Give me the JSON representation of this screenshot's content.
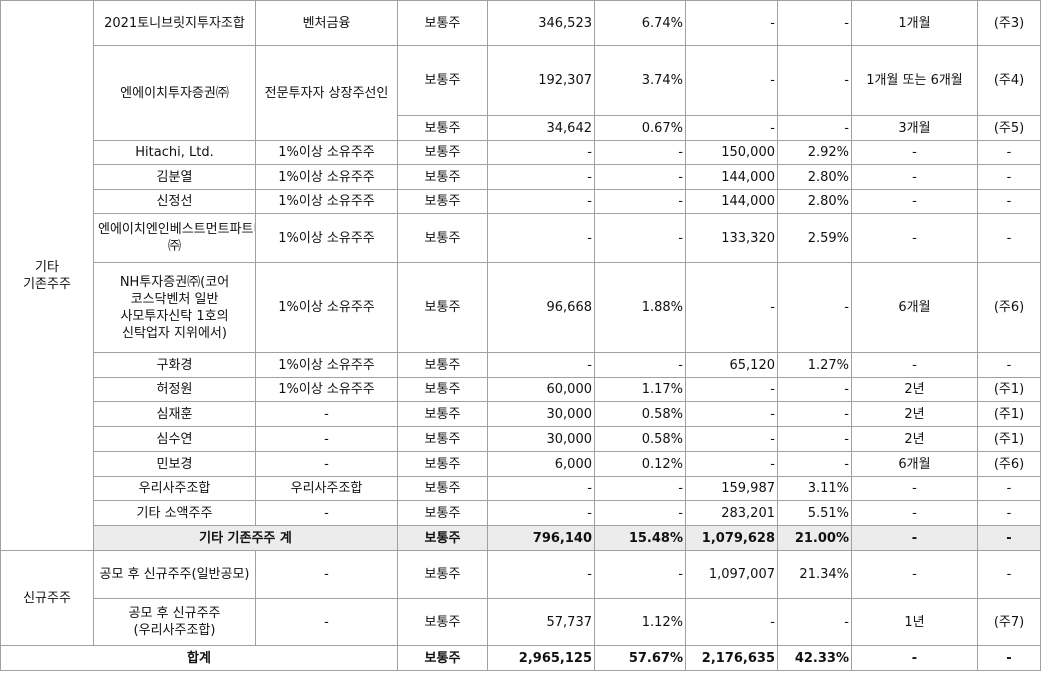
{
  "table": {
    "groups": [
      {
        "label": "기타 기존주주",
        "rows": [
          [
            "2021토니브릿지투자조합",
            "벤처금융",
            "보통주",
            "346,523",
            "6.74%",
            "-",
            "-",
            "1개월",
            "(주3)"
          ],
          [
            "엔에이치투자증권㈜",
            "전문투자자 상장주선인",
            "보통주",
            "192,307",
            "3.74%",
            "-",
            "-",
            "1개월 또는 6개월",
            "(주4)"
          ],
          [
            "보통주",
            "34,642",
            "0.67%",
            "-",
            "-",
            "3개월",
            "(주5)"
          ],
          [
            "Hitachi, Ltd.",
            "1%이상 소유주주",
            "보통주",
            "-",
            "-",
            "150,000",
            "2.92%",
            "-",
            "-"
          ],
          [
            "김분열",
            "1%이상 소유주주",
            "보통주",
            "-",
            "-",
            "144,000",
            "2.80%",
            "-",
            "-"
          ],
          [
            "신정선",
            "1%이상 소유주주",
            "보통주",
            "-",
            "-",
            "144,000",
            "2.80%",
            "-",
            "-"
          ],
          [
            "엔에이치엔인베스트먼트파트너스㈜",
            "1%이상 소유주주",
            "보통주",
            "-",
            "-",
            "133,320",
            "2.59%",
            "-",
            "-"
          ],
          [
            "NH투자증권㈜(코어 코스닥벤처 일반 사모투자신탁 1호의 신탁업자 지위에서)",
            "1%이상 소유주주",
            "보통주",
            "96,668",
            "1.88%",
            "-",
            "-",
            "6개월",
            "(주6)"
          ],
          [
            "구화경",
            "1%이상 소유주주",
            "보통주",
            "-",
            "-",
            "65,120",
            "1.27%",
            "-",
            "-"
          ],
          [
            "허정원",
            "1%이상 소유주주",
            "보통주",
            "60,000",
            "1.17%",
            "-",
            "-",
            "2년",
            "(주1)"
          ],
          [
            "심재훈",
            "-",
            "보통주",
            "30,000",
            "0.58%",
            "-",
            "-",
            "2년",
            "(주1)"
          ],
          [
            "심수연",
            "-",
            "보통주",
            "30,000",
            "0.58%",
            "-",
            "-",
            "2년",
            "(주1)"
          ],
          [
            "민보경",
            "-",
            "보통주",
            "6,000",
            "0.12%",
            "-",
            "-",
            "6개월",
            "(주6)"
          ],
          [
            "우리사주조합",
            "우리사주조합",
            "보통주",
            "-",
            "-",
            "159,987",
            "3.11%",
            "-",
            "-"
          ],
          [
            "기타 소액주주",
            "-",
            "보통주",
            "-",
            "-",
            "283,201",
            "5.51%",
            "-",
            "-"
          ],
          [
            "기타 기존주주 계",
            "보통주",
            "796,140",
            "15.48%",
            "1,079,628",
            "21.00%",
            "-",
            "-"
          ]
        ]
      },
      {
        "label": "신규주주",
        "rows": [
          [
            "공모 후 신규주주(일반공모)",
            "-",
            "보통주",
            "-",
            "-",
            "1,097,007",
            "21.34%",
            "-",
            "-"
          ],
          [
            "공모 후 신규주주(우리사주조합)",
            "-",
            "보통주",
            "57,737",
            "1.12%",
            "-",
            "-",
            "1년",
            "(주7)"
          ]
        ]
      }
    ],
    "total": [
      "합계",
      "보통주",
      "2,965,125",
      "57.67%",
      "2,176,635",
      "42.33%",
      "-",
      "-"
    ]
  }
}
